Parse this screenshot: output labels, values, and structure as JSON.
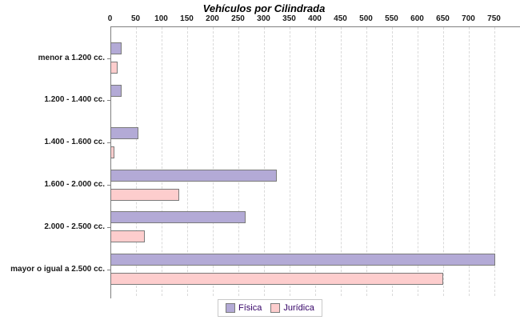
{
  "title": "Vehículos por Cilindrada",
  "chart_data": {
    "type": "bar",
    "orientation": "horizontal",
    "title": "Vehículos por Cilindrada",
    "xlabel": "",
    "ylabel": "",
    "categories": [
      "menor a 1.200 cc.",
      "1.200 - 1.400 cc.",
      "1.400 - 1.600 cc.",
      "1.600 - 2.000 cc.",
      "2.000 - 2.500 cc.",
      "mayor o igual a 2.500 cc."
    ],
    "series": [
      {
        "name": "Física",
        "color": "#b3aad6",
        "values": [
          23,
          22,
          55,
          325,
          265,
          752
        ]
      },
      {
        "name": "Jurídica",
        "color": "#fdcdcd",
        "values": [
          15,
          0,
          8,
          135,
          68,
          650
        ]
      }
    ],
    "xlim": [
      0,
      800
    ],
    "x_ticks": [
      0,
      50,
      100,
      150,
      200,
      250,
      300,
      350,
      400,
      450,
      500,
      550,
      600,
      650,
      700,
      750
    ],
    "grid": "vertical-dashed",
    "legend_position": "bottom-center"
  },
  "colors": {
    "axis": "#808080",
    "gridline": "#d9d9d9",
    "bar_border": "#7a7a7a",
    "legend_text": "#330066",
    "legend_border": "#c9c9c9",
    "title_text": "#000000"
  }
}
